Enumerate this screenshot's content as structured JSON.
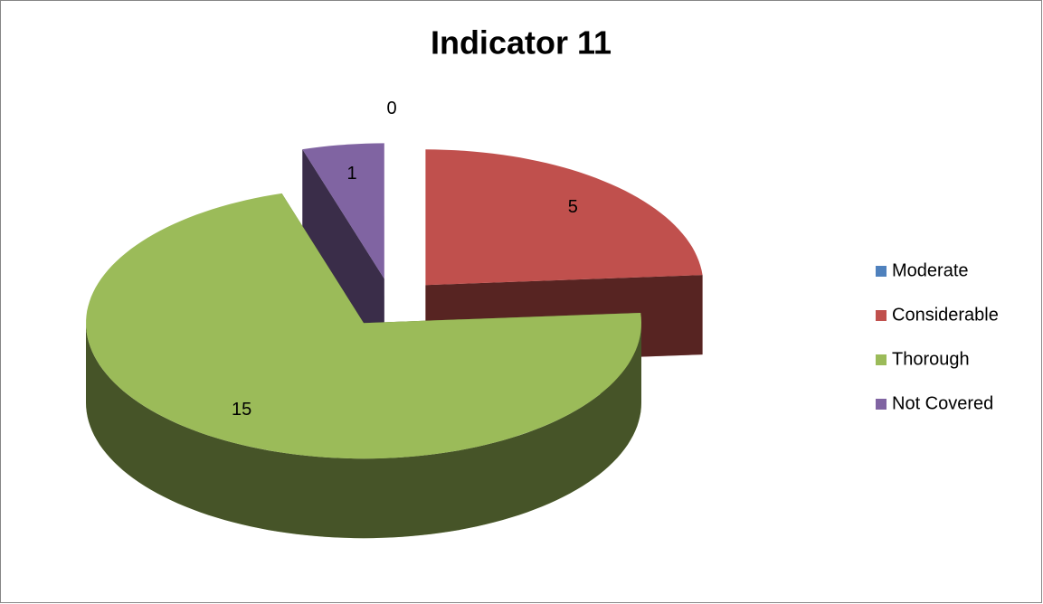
{
  "chart_data": {
    "type": "pie3d",
    "title": "Indicator 11",
    "categories": [
      "Moderate",
      "Considerable",
      "Thorough",
      "Not Covered"
    ],
    "values": [
      0,
      5,
      15,
      1
    ],
    "colors": [
      "#4f81bd",
      "#c0504d",
      "#9bbb59",
      "#8064a2"
    ],
    "legend": "right"
  }
}
